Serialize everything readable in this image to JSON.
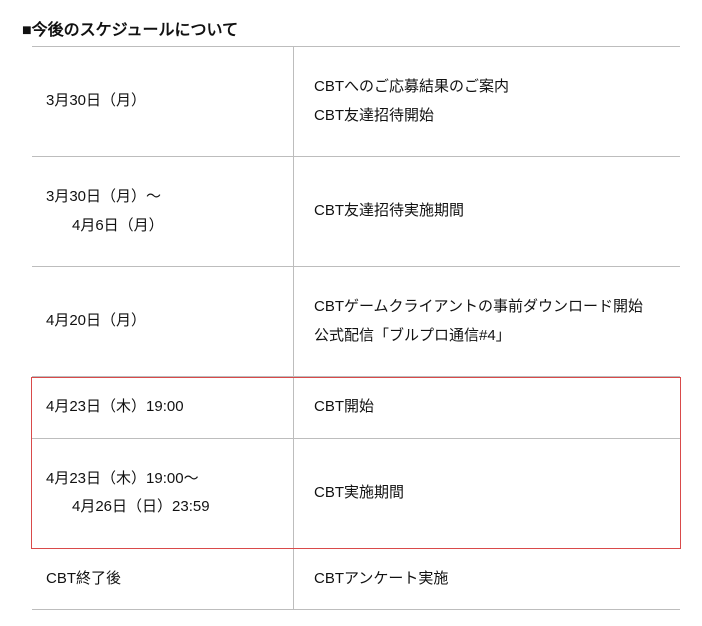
{
  "title": "■今後のスケジュールについて",
  "rows": [
    {
      "date_lines": [
        "3月30日（月）"
      ],
      "desc_lines": [
        "CBTへのご応募結果のご案内",
        "CBT友達招待開始"
      ]
    },
    {
      "date_lines": [
        "3月30日（月）～",
        "4月6日（月）"
      ],
      "date_sub_from": 1,
      "desc_lines": [
        "CBT友達招待実施期間"
      ]
    },
    {
      "date_lines": [
        "4月20日（月）"
      ],
      "desc_lines": [
        "CBTゲームクライアントの事前ダウンロード開始",
        "公式配信「ブルプロ通信#4」"
      ]
    },
    {
      "date_lines": [
        "4月23日（木）19:00"
      ],
      "desc_lines": [
        "CBT開始"
      ],
      "compact": true,
      "highlight": "top"
    },
    {
      "date_lines": [
        "4月23日（木）19:00～",
        "4月26日（日）23:59"
      ],
      "date_sub_from": 1,
      "desc_lines": [
        "CBT実施期間"
      ],
      "highlight": "bot"
    },
    {
      "date_lines": [
        "CBT終了後"
      ],
      "desc_lines": [
        "CBTアンケート実施"
      ],
      "compact": true
    }
  ],
  "colors": {
    "border": "#bdbdbd",
    "highlight": "#d94a4a",
    "text": "#111111",
    "background": "#ffffff"
  }
}
